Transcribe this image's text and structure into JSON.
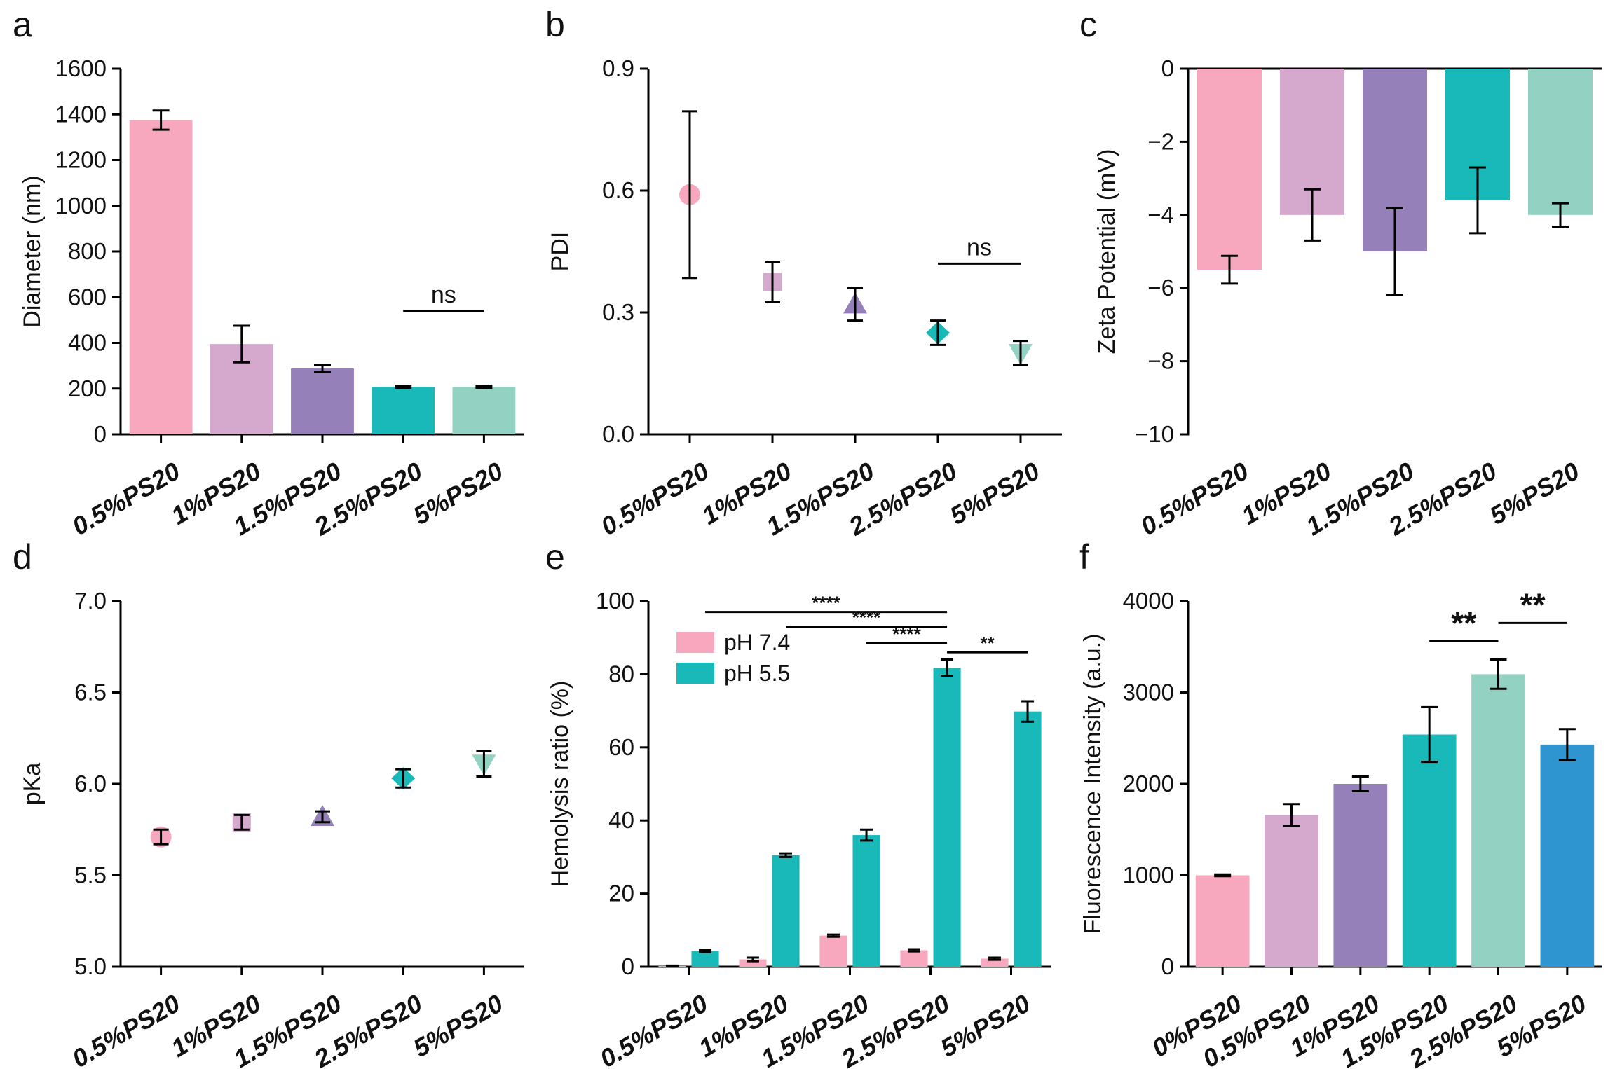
{
  "chart_data": [
    {
      "panel": "a",
      "type": "bar",
      "ylabel": "Diameter (nm)",
      "ylim": [
        0,
        1600
      ],
      "yticks": [
        0,
        200,
        400,
        600,
        800,
        1000,
        1200,
        1400,
        1600
      ],
      "categories": [
        "0.5%PS20",
        "1%PS20",
        "1.5%PS20",
        "2.5%PS20",
        "5%PS20"
      ],
      "values": [
        1375,
        395,
        288,
        208,
        208
      ],
      "errors": [
        42,
        80,
        15,
        5,
        5
      ],
      "colors": [
        "#f7a8be",
        "#d5a8cd",
        "#9580b9",
        "#1ab9b9",
        "#93d2c2"
      ],
      "annotations": [
        {
          "text": "ns",
          "from": 3,
          "to": 4,
          "y": 540
        }
      ]
    },
    {
      "panel": "b",
      "type": "scatter",
      "ylabel": "PDI",
      "ylim": [
        0,
        0.9
      ],
      "yticks": [
        "0.0",
        "0.3",
        "0.6",
        "0.9"
      ],
      "categories": [
        "0.5%PS20",
        "1%PS20",
        "1.5%PS20",
        "2.5%PS20",
        "5%PS20"
      ],
      "values": [
        0.59,
        0.375,
        0.32,
        0.25,
        0.2
      ],
      "errors": [
        0.205,
        0.05,
        0.04,
        0.03,
        0.03
      ],
      "markers": [
        "circle",
        "square",
        "triangle-up",
        "diamond",
        "triangle-down"
      ],
      "colors": [
        "#f7a8be",
        "#d5a8cd",
        "#9580b9",
        "#1ab9b9",
        "#93d2c2"
      ],
      "annotations": [
        {
          "text": "ns",
          "from": 3,
          "to": 4,
          "y": 0.42
        }
      ]
    },
    {
      "panel": "c",
      "type": "bar",
      "ylabel": "Zeta Potential (mV)",
      "ylim": [
        -10,
        0
      ],
      "yticks": [
        "−10",
        "−8",
        "−6",
        "−4",
        "−2",
        "0"
      ],
      "categories": [
        "0.5%PS20",
        "1%PS20",
        "1.5%PS20",
        "2.5%PS20",
        "5%PS20"
      ],
      "values": [
        -5.5,
        -4.0,
        -5.0,
        -3.6,
        -4.0
      ],
      "errors": [
        0.38,
        0.7,
        1.18,
        0.9,
        0.32
      ],
      "colors": [
        "#f7a8be",
        "#d5a8cd",
        "#9580b9",
        "#1ab9b9",
        "#93d2c2"
      ]
    },
    {
      "panel": "d",
      "type": "scatter",
      "ylabel": "pKa",
      "ylim": [
        5.0,
        7.0
      ],
      "yticks": [
        "5.0",
        "5.5",
        "6.0",
        "6.5",
        "7.0"
      ],
      "categories": [
        "0.5%PS20",
        "1%PS20",
        "1.5%PS20",
        "2.5%PS20",
        "5%PS20"
      ],
      "values": [
        5.71,
        5.79,
        5.82,
        6.03,
        6.11
      ],
      "errors": [
        0.04,
        0.04,
        0.03,
        0.05,
        0.07
      ],
      "markers": [
        "circle",
        "square",
        "triangle-up",
        "diamond",
        "triangle-down"
      ],
      "colors": [
        "#f7a8be",
        "#d5a8cd",
        "#9580b9",
        "#1ab9b9",
        "#93d2c2"
      ]
    },
    {
      "panel": "e",
      "type": "bar",
      "ylabel": "Hemolysis ratio (%)",
      "ylim": [
        0,
        100
      ],
      "yticks": [
        0,
        20,
        40,
        60,
        80,
        100
      ],
      "categories": [
        "0.5%PS20",
        "1%PS20",
        "1.5%PS20",
        "2.5%PS20",
        "5%PS20"
      ],
      "series": [
        {
          "name": "pH 7.4",
          "color": "#f7a8be",
          "values": [
            0.2,
            2.0,
            8.5,
            4.5,
            2.2
          ],
          "errors": [
            0.1,
            0.5,
            0.3,
            0.3,
            0.3
          ]
        },
        {
          "name": "pH 5.5",
          "color": "#1ab9b9",
          "values": [
            4.3,
            30.5,
            36.0,
            81.8,
            69.8
          ],
          "errors": [
            0.3,
            0.5,
            1.5,
            2.2,
            2.8
          ]
        }
      ],
      "legend": "top-left",
      "annotations": [
        {
          "text": "****",
          "from": 0,
          "to": 3,
          "y": 97
        },
        {
          "text": "****",
          "from": 1,
          "to": 3,
          "y": 93
        },
        {
          "text": "****",
          "from": 2,
          "to": 3,
          "y": 88.5
        },
        {
          "text": "**",
          "from": 3,
          "to": 4,
          "y": 86
        }
      ]
    },
    {
      "panel": "f",
      "type": "bar",
      "ylabel": "Fluorescence Intensity (a.u.)",
      "ylim": [
        0,
        4000
      ],
      "yticks": [
        0,
        1000,
        2000,
        3000,
        4000
      ],
      "categories": [
        "0%PS20",
        "0.5%PS20",
        "1%PS20",
        "1.5%PS20",
        "2.5%PS20",
        "5%PS20"
      ],
      "values": [
        1000,
        1660,
        2000,
        2540,
        3200,
        2430
      ],
      "errors": [
        10,
        120,
        80,
        300,
        160,
        170
      ],
      "colors": [
        "#f7a8be",
        "#d5a8cd",
        "#9580b9",
        "#1ab9b9",
        "#93d2c2",
        "#2f95d0"
      ],
      "annotations": [
        {
          "text": "**",
          "from": 3,
          "to": 4,
          "y": 3560
        },
        {
          "text": "**",
          "from": 4,
          "to": 5,
          "y": 3760
        }
      ]
    }
  ]
}
